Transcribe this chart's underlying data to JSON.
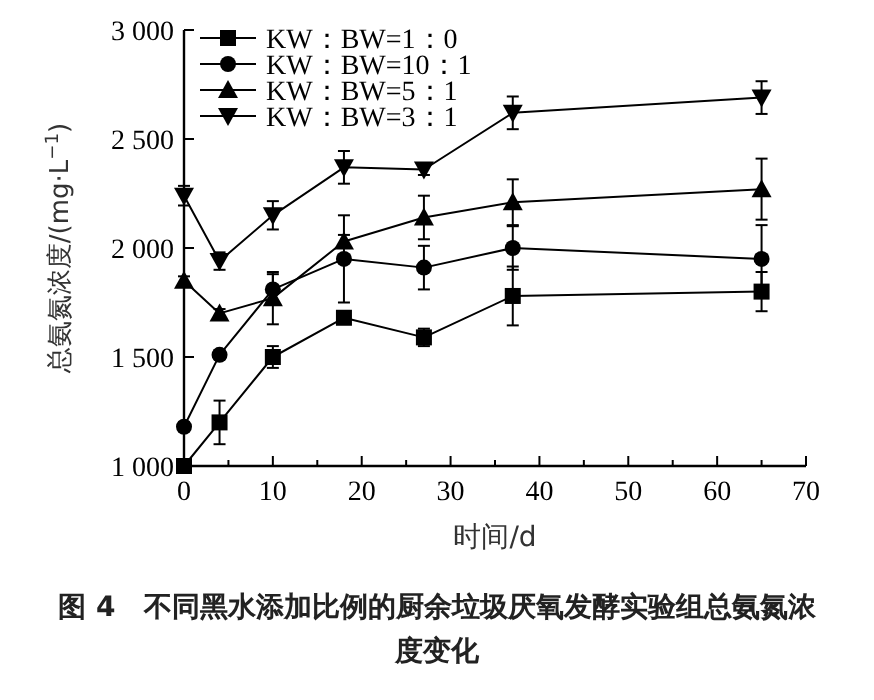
{
  "chart_data": {
    "type": "line",
    "xlabel": "时间/d",
    "ylabel": "总氨氮浓度/(mg·L$^{−1}$)",
    "annotations": [
      "图 4　不同黑水添加比例的厨余垃圾厌氧发酵实验组总氨氮浓度变化"
    ],
    "x": [
      0,
      4,
      10,
      18,
      27,
      37,
      65
    ],
    "xlim": [
      0,
      70
    ],
    "ylim": [
      1000,
      3000
    ],
    "xticks": [
      0,
      {
        "value": 5,
        "label": null
      },
      10,
      {
        "value": 15,
        "label": null
      },
      20,
      {
        "value": 25,
        "label": null
      },
      30,
      {
        "value": 35,
        "label": null
      },
      40,
      {
        "value": 45,
        "label": null
      },
      50,
      {
        "value": 55,
        "label": null
      },
      60,
      {
        "value": 65,
        "label": null
      },
      70
    ],
    "yticks": [
      {
        "value": 1000,
        "label": "1 000"
      },
      {
        "value": 1500,
        "label": "1 500"
      },
      {
        "value": 2000,
        "label": "2 000"
      },
      {
        "value": 2500,
        "label": "2 500"
      },
      {
        "value": 3000,
        "label": "3 000"
      }
    ],
    "legend": "top left",
    "grid": false,
    "line_style": "solid",
    "series": [
      {
        "name": "KW：BW=1：0",
        "color": "#000000",
        "marker": "square",
        "values": [
          1000,
          1200,
          1500,
          1680,
          1590,
          1780,
          1800
        ],
        "errors": [
          null,
          100,
          50,
          null,
          40,
          135,
          90
        ]
      },
      {
        "name": "KW：BW=10：1",
        "color": "#000000",
        "marker": "circle",
        "values": [
          1180,
          1510,
          1810,
          1950,
          1910,
          2000,
          1950
        ],
        "errors": [
          20,
          20,
          70,
          200,
          100,
          100,
          155
        ]
      },
      {
        "name": "KW：BW=5：1",
        "color": "#000000",
        "marker": "triangle",
        "values": [
          1850,
          1700,
          1770,
          2030,
          2140,
          2210,
          2270
        ],
        "errors": [
          20,
          20,
          120,
          30,
          100,
          105,
          140
        ]
      },
      {
        "name": "KW：BW=3：1",
        "color": "#000000",
        "marker": "triangle-down",
        "values": [
          2240,
          1940,
          2150,
          2370,
          2360,
          2620,
          2690
        ],
        "errors": [
          45,
          40,
          65,
          75,
          25,
          75,
          75
        ]
      }
    ]
  }
}
